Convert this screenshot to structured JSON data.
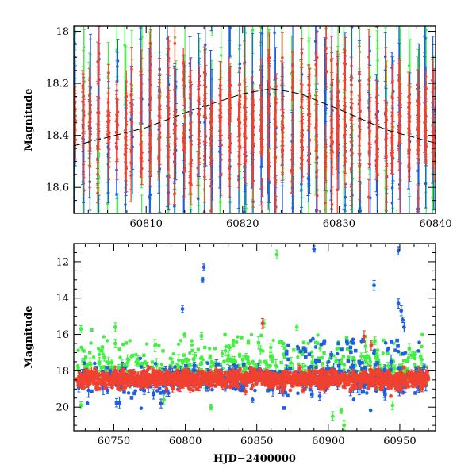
{
  "chart_data": [
    {
      "type": "scatter",
      "id": "top-panel",
      "title": "",
      "xlabel": "",
      "ylabel": "Magnitude",
      "xlim": [
        60802.5,
        60840
      ],
      "ylim": [
        18.7,
        17.98
      ],
      "y_inverted": true,
      "xticks": [
        60810,
        60820,
        60830,
        60840
      ],
      "xtick_labels": [
        "60810",
        "60820",
        "60830",
        "60840"
      ],
      "yticks": [
        18,
        18.2,
        18.4,
        18.6
      ],
      "ytick_labels": [
        "18",
        "18.2",
        "18.4",
        "18.6"
      ],
      "colors": {
        "green": "#44ee44",
        "blue": "#1f5fe0",
        "red": "#f04030",
        "model": "#000000"
      },
      "series": [
        {
          "name": "green",
          "note": "dense points with error bars 0.05–0.25 mag"
        },
        {
          "name": "blue",
          "note": "dense points with error bars 0.05–0.25 mag"
        },
        {
          "name": "red",
          "note": "dense points with error bars 0.03–0.12 mag"
        },
        {
          "name": "model",
          "style": "dashed",
          "x": [
            60802.5,
            60810,
            60815,
            60820,
            60823,
            60826,
            60830,
            60835,
            60840
          ],
          "y": [
            18.44,
            18.37,
            18.3,
            18.24,
            18.22,
            18.24,
            18.3,
            18.38,
            18.43
          ]
        }
      ]
    },
    {
      "type": "scatter",
      "id": "bottom-panel",
      "title": "",
      "xlabel": "HJD−2400000",
      "ylabel": "Magnitude",
      "xlim": [
        60722,
        60975
      ],
      "ylim": [
        21.3,
        11.0
      ],
      "y_inverted": true,
      "xticks": [
        60750,
        60800,
        60850,
        60900,
        60950
      ],
      "xtick_labels": [
        "60750",
        "60800",
        "60850",
        "60900",
        "60950"
      ],
      "yticks": [
        12,
        14,
        16,
        18,
        20
      ],
      "ytick_labels": [
        "12",
        "14",
        "16",
        "18",
        "20"
      ],
      "colors": {
        "green": "#44ee44",
        "blue": "#1f5fe0",
        "red": "#f04030"
      },
      "baseline_mag": 18.45,
      "bright_outliers": [
        {
          "series": "blue",
          "x": 60812,
          "y": 13.0
        },
        {
          "series": "blue",
          "x": 60813,
          "y": 12.3
        },
        {
          "series": "blue",
          "x": 60798,
          "y": 14.6
        },
        {
          "series": "blue",
          "x": 60890,
          "y": 11.3
        },
        {
          "series": "blue",
          "x": 60932,
          "y": 13.3
        },
        {
          "series": "blue",
          "x": 60949,
          "y": 11.4
        },
        {
          "series": "blue",
          "x": 60949,
          "y": 14.3
        },
        {
          "series": "blue",
          "x": 60951,
          "y": 14.7
        },
        {
          "series": "blue",
          "x": 60952,
          "y": 15.2
        },
        {
          "series": "blue",
          "x": 60953,
          "y": 15.6
        },
        {
          "series": "green",
          "x": 60864,
          "y": 11.6
        },
        {
          "series": "green",
          "x": 60751,
          "y": 15.6
        },
        {
          "series": "green",
          "x": 60751,
          "y": 16.5
        },
        {
          "series": "green",
          "x": 60727,
          "y": 15.7
        },
        {
          "series": "green",
          "x": 60828,
          "y": 16.9
        },
        {
          "series": "green",
          "x": 60855,
          "y": 15.4
        },
        {
          "series": "green",
          "x": 60878,
          "y": 15.6
        },
        {
          "series": "red",
          "x": 60854,
          "y": 15.4
        },
        {
          "series": "red",
          "x": 60925,
          "y": 16.1
        },
        {
          "series": "red",
          "x": 60930,
          "y": 16.6
        }
      ],
      "faint_outliers": [
        {
          "series": "green",
          "x": 60727,
          "y": 19.9
        },
        {
          "series": "green",
          "x": 60785,
          "y": 19.6
        },
        {
          "series": "green",
          "x": 60818,
          "y": 20.0
        },
        {
          "series": "green",
          "x": 60903,
          "y": 20.5
        },
        {
          "series": "green",
          "x": 60909,
          "y": 20.2
        },
        {
          "series": "green",
          "x": 60911,
          "y": 21.0
        },
        {
          "series": "green",
          "x": 60945,
          "y": 19.9
        },
        {
          "series": "blue",
          "x": 60783,
          "y": 19.8
        },
        {
          "series": "blue",
          "x": 60847,
          "y": 19.6
        },
        {
          "series": "blue",
          "x": 60894,
          "y": 19.4
        }
      ]
    }
  ]
}
